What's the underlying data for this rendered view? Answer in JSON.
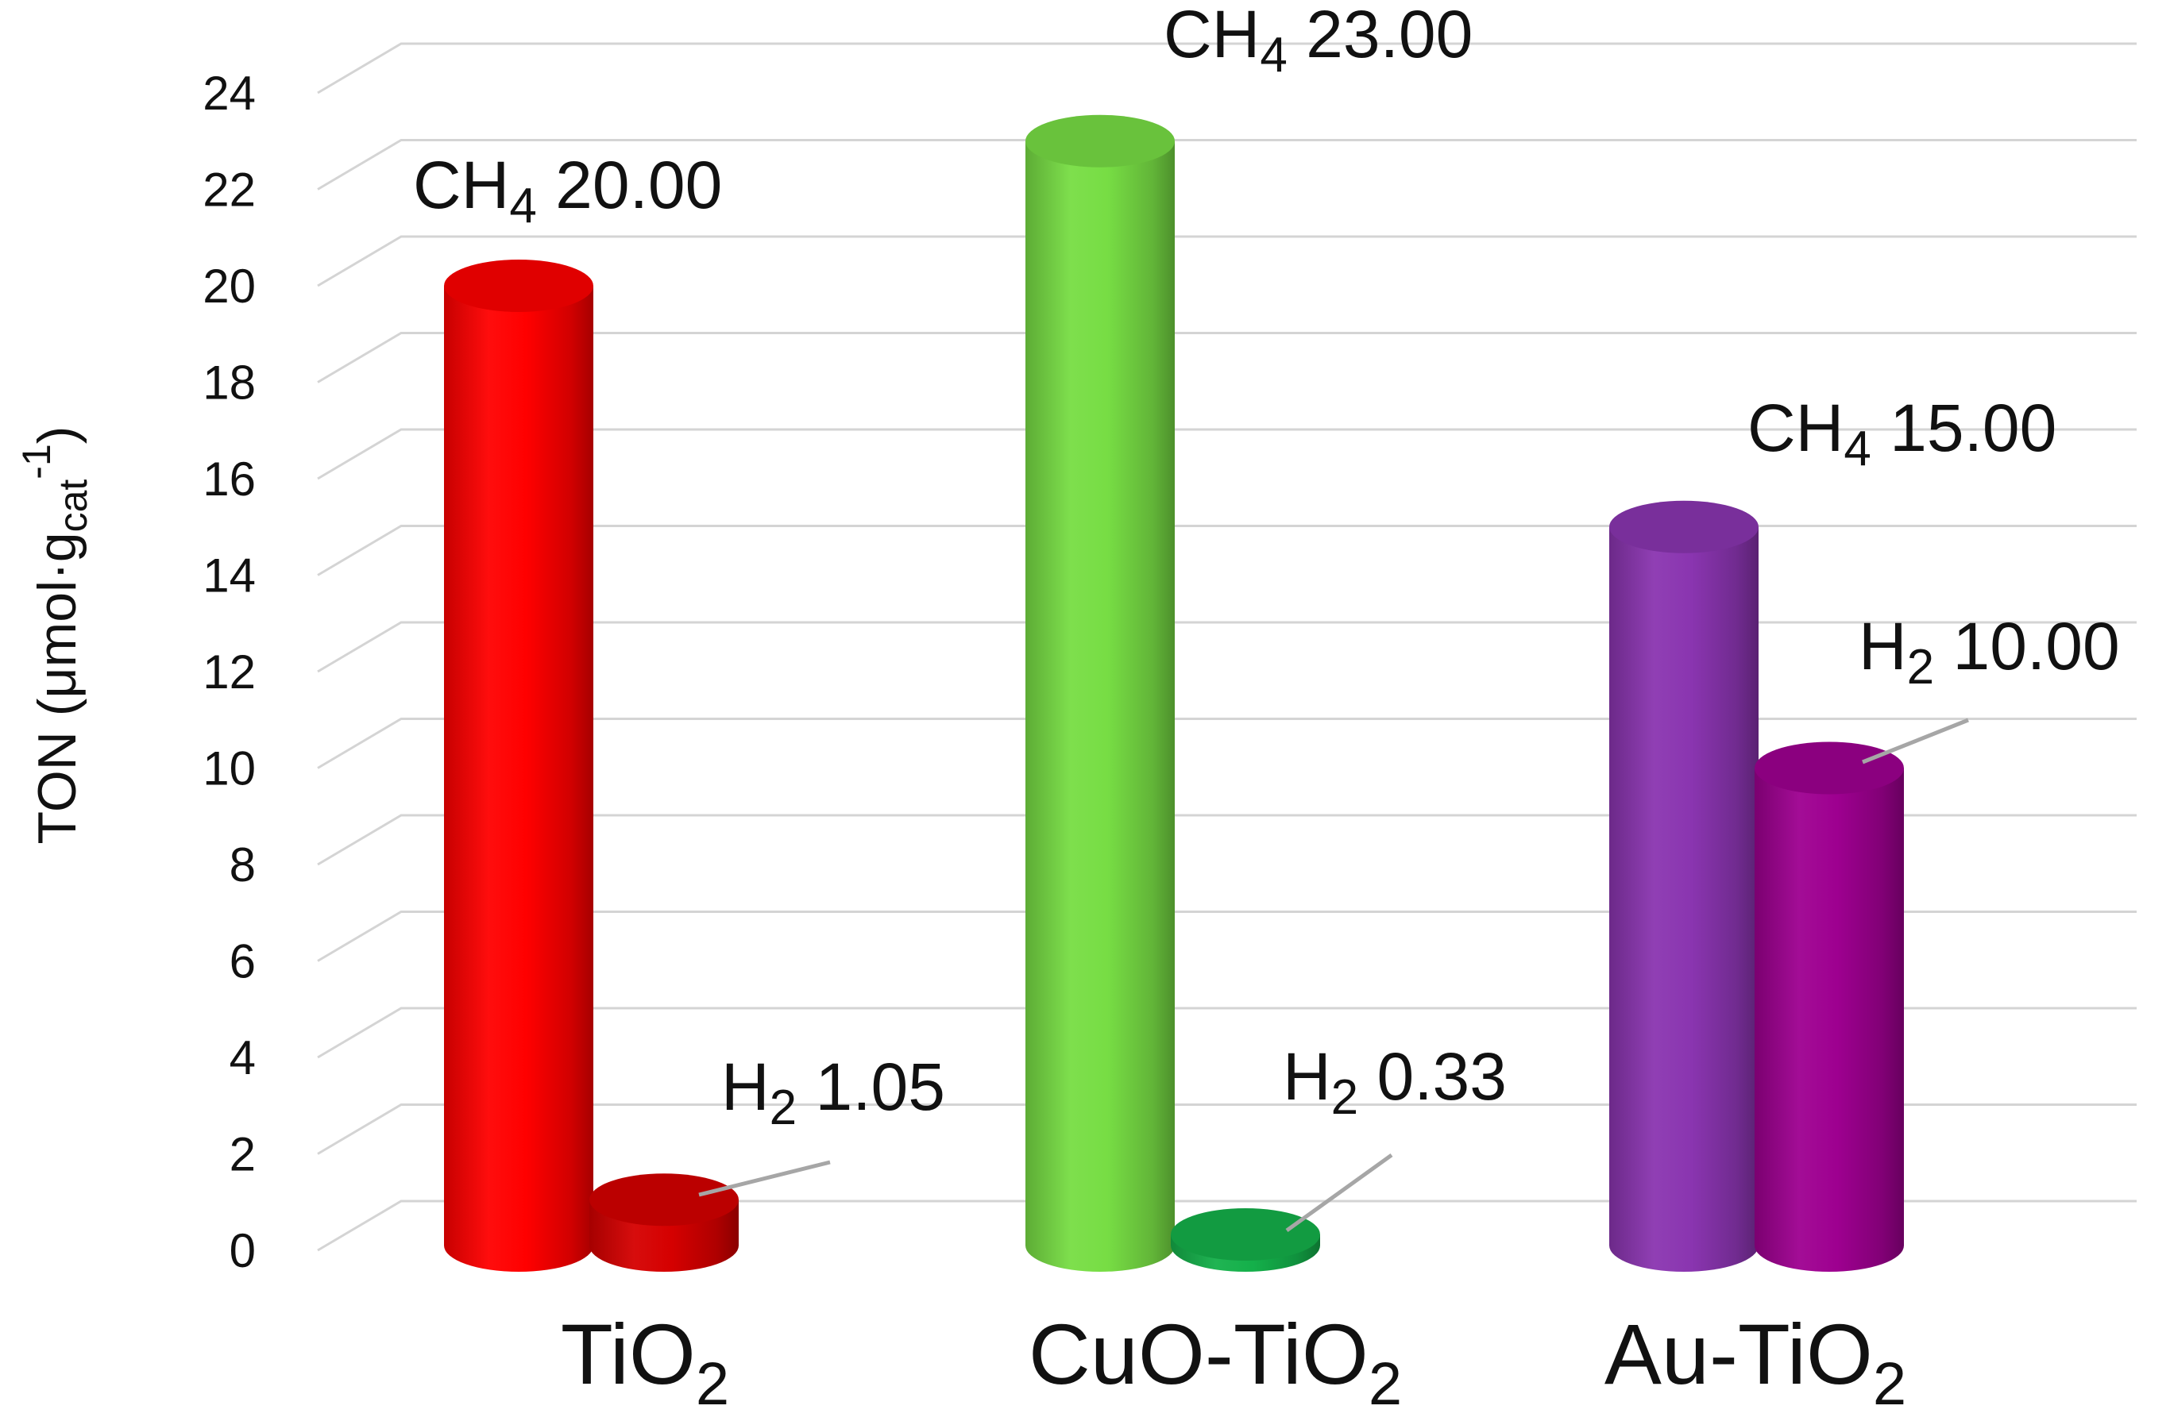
{
  "chart_data": {
    "type": "bar",
    "style": "3d-cylinder",
    "ylabel": {
      "text": "TON (μmol·g",
      "sub": "cat",
      "sup": "-1",
      "close": ")"
    },
    "ylim": [
      0,
      24
    ],
    "yticks": [
      "0",
      "2",
      "4",
      "6",
      "8",
      "10",
      "12",
      "14",
      "16",
      "18",
      "20",
      "22",
      "24"
    ],
    "grid": true,
    "categories": [
      {
        "base": "TiO",
        "sub": "2"
      },
      {
        "base": "CuO-TiO",
        "sub": "2"
      },
      {
        "base": "Au-TiO",
        "sub": "2"
      }
    ],
    "series": [
      {
        "name": "CH4",
        "values": [
          20.0,
          23.0,
          15.0
        ],
        "colors": [
          "#ff0000",
          "#77dd44",
          "#8a35b0"
        ],
        "labels": [
          {
            "species": "CH",
            "sub": "4",
            "value": "20.00"
          },
          {
            "species": "CH",
            "sub": "4",
            "value": "23.00"
          },
          {
            "species": "CH",
            "sub": "4",
            "value": "15.00"
          }
        ]
      },
      {
        "name": "H2",
        "values": [
          1.05,
          0.33,
          10.0
        ],
        "colors": [
          "#d50000",
          "#14b04a",
          "#9e0090"
        ],
        "labels": [
          {
            "species": "H",
            "sub": "2",
            "value": "1.05"
          },
          {
            "species": "H",
            "sub": "2",
            "value": "0.33"
          },
          {
            "species": "H",
            "sub": "2",
            "value": "10.00"
          }
        ]
      }
    ]
  }
}
